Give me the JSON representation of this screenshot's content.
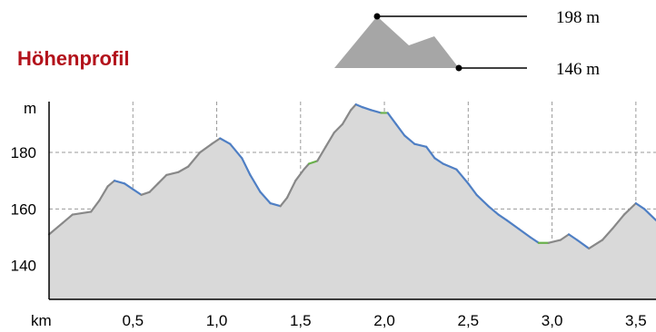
{
  "title": "Höhenprofil",
  "legend": {
    "max_label": "198 m",
    "min_label": "146 m",
    "colors": {
      "mountain": "#a6a6a6",
      "line": "#000000"
    }
  },
  "chart_data": {
    "type": "area",
    "title": "Höhenprofil",
    "xlabel": "km",
    "ylabel": "m",
    "xlim": [
      0,
      3.62
    ],
    "ylim": [
      128,
      198
    ],
    "x_ticks": [
      0.5,
      1.0,
      1.5,
      2.0,
      2.5,
      3.0,
      3.5
    ],
    "x_tick_labels": [
      "0,5",
      "1,0",
      "1,5",
      "2,0",
      "2,5",
      "3,0",
      "3,5"
    ],
    "y_ticks": [
      140,
      160,
      180
    ],
    "y_tick_labels": [
      "140",
      "160",
      "180"
    ],
    "grid": true,
    "colors": {
      "fill": "#d9d9d9",
      "ascent": "#888888",
      "descent": "#4f7fc4",
      "flat": "#6ab04c",
      "axis": "#000000",
      "grid": "#9a9a9a"
    },
    "profile": [
      {
        "x": 0.0,
        "y": 151
      },
      {
        "x": 0.08,
        "y": 155
      },
      {
        "x": 0.14,
        "y": 158
      },
      {
        "x": 0.25,
        "y": 159
      },
      {
        "x": 0.3,
        "y": 163
      },
      {
        "x": 0.35,
        "y": 168
      },
      {
        "x": 0.39,
        "y": 170
      },
      {
        "x": 0.45,
        "y": 169
      },
      {
        "x": 0.5,
        "y": 167
      },
      {
        "x": 0.55,
        "y": 165
      },
      {
        "x": 0.6,
        "y": 166
      },
      {
        "x": 0.65,
        "y": 169
      },
      {
        "x": 0.7,
        "y": 172
      },
      {
        "x": 0.77,
        "y": 173
      },
      {
        "x": 0.83,
        "y": 175
      },
      {
        "x": 0.9,
        "y": 180
      },
      {
        "x": 0.97,
        "y": 183
      },
      {
        "x": 1.02,
        "y": 185
      },
      {
        "x": 1.08,
        "y": 183
      },
      {
        "x": 1.15,
        "y": 178
      },
      {
        "x": 1.2,
        "y": 172
      },
      {
        "x": 1.26,
        "y": 166
      },
      {
        "x": 1.32,
        "y": 162
      },
      {
        "x": 1.38,
        "y": 161
      },
      {
        "x": 1.42,
        "y": 164
      },
      {
        "x": 1.47,
        "y": 170
      },
      {
        "x": 1.52,
        "y": 174
      },
      {
        "x": 1.55,
        "y": 176
      },
      {
        "x": 1.6,
        "y": 177
      },
      {
        "x": 1.65,
        "y": 182
      },
      {
        "x": 1.7,
        "y": 187
      },
      {
        "x": 1.75,
        "y": 190
      },
      {
        "x": 1.8,
        "y": 195
      },
      {
        "x": 1.83,
        "y": 197
      },
      {
        "x": 1.87,
        "y": 196
      },
      {
        "x": 1.92,
        "y": 195
      },
      {
        "x": 1.98,
        "y": 194
      },
      {
        "x": 2.02,
        "y": 194
      },
      {
        "x": 2.07,
        "y": 190
      },
      {
        "x": 2.12,
        "y": 186
      },
      {
        "x": 2.18,
        "y": 183
      },
      {
        "x": 2.25,
        "y": 182
      },
      {
        "x": 2.3,
        "y": 178
      },
      {
        "x": 2.35,
        "y": 176
      },
      {
        "x": 2.43,
        "y": 174
      },
      {
        "x": 2.5,
        "y": 169
      },
      {
        "x": 2.55,
        "y": 165
      },
      {
        "x": 2.62,
        "y": 161
      },
      {
        "x": 2.68,
        "y": 158
      },
      {
        "x": 2.73,
        "y": 156
      },
      {
        "x": 2.8,
        "y": 153
      },
      {
        "x": 2.87,
        "y": 150
      },
      {
        "x": 2.92,
        "y": 148
      },
      {
        "x": 2.98,
        "y": 148
      },
      {
        "x": 3.05,
        "y": 149
      },
      {
        "x": 3.1,
        "y": 151
      },
      {
        "x": 3.15,
        "y": 149
      },
      {
        "x": 3.22,
        "y": 146
      },
      {
        "x": 3.3,
        "y": 149
      },
      {
        "x": 3.36,
        "y": 153
      },
      {
        "x": 3.43,
        "y": 158
      },
      {
        "x": 3.5,
        "y": 162
      },
      {
        "x": 3.55,
        "y": 160
      },
      {
        "x": 3.62,
        "y": 156
      }
    ]
  }
}
